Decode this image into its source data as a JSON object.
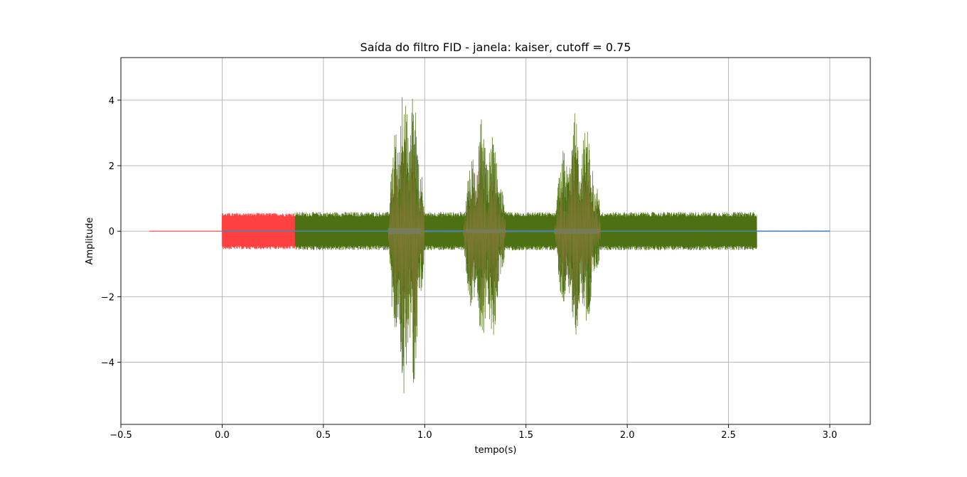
{
  "chart_data": {
    "type": "line",
    "title": "Saída do filtro FID - janela: kaiser, cutoff = 0.75",
    "xlabel": "tempo(s)",
    "ylabel": "Amplitude",
    "xlim": [
      -0.5,
      3.2
    ],
    "ylim": [
      -5.9,
      5.3
    ],
    "xticks": [
      -0.5,
      0.0,
      0.5,
      1.0,
      1.5,
      2.0,
      2.5,
      3.0
    ],
    "xtick_labels": [
      "−0.5",
      "0.0",
      "0.5",
      "1.0",
      "1.5",
      "2.0",
      "2.5",
      "3.0"
    ],
    "yticks": [
      -4,
      -2,
      0,
      2,
      4
    ],
    "ytick_labels": [
      "−4",
      "−2",
      "0",
      "2",
      "4"
    ],
    "grid": true,
    "legend": "none",
    "colors": {
      "red": "#ff4040",
      "green": "#4c7012",
      "blue": "#4a84b4",
      "olive": "#8a7b3c"
    },
    "series": [
      {
        "color": "#ff4040",
        "x_range": [
          -0.36,
          0.36
        ],
        "segments": [
          {
            "t": [
              -0.36,
              0.0
            ],
            "amp": 0.003
          },
          {
            "t": [
              0.0,
              0.36
            ],
            "amp": 0.55
          }
        ]
      },
      {
        "color": "#4a84b4",
        "x_range": [
          0.0,
          3.0
        ],
        "segments": [
          {
            "t": [
              0.0,
              0.82
            ],
            "amp": 0.01
          },
          {
            "t": [
              0.82,
              0.98
            ],
            "amp": 0.09
          },
          {
            "t": [
              0.98,
              1.2
            ],
            "amp": 0.02
          },
          {
            "t": [
              1.2,
              1.4
            ],
            "amp": 0.05
          },
          {
            "t": [
              1.4,
              1.64
            ],
            "amp": 0.02
          },
          {
            "t": [
              1.64,
              1.86
            ],
            "amp": 0.07
          },
          {
            "t": [
              1.86,
              3.0
            ],
            "amp": 0.01
          }
        ]
      },
      {
        "color": "#4c7012",
        "x_range": [
          0.36,
          2.64
        ],
        "baseline_amp": 0.58,
        "bursts": [
          {
            "t": [
              0.82,
              1.0
            ],
            "peak": 4.8,
            "trough": -5.3
          },
          {
            "t": [
              1.19,
              1.4
            ],
            "peak": 3.5,
            "trough": -3.7
          },
          {
            "t": [
              1.64,
              1.87
            ],
            "peak": 3.7,
            "trough": -3.3
          }
        ]
      }
    ]
  }
}
